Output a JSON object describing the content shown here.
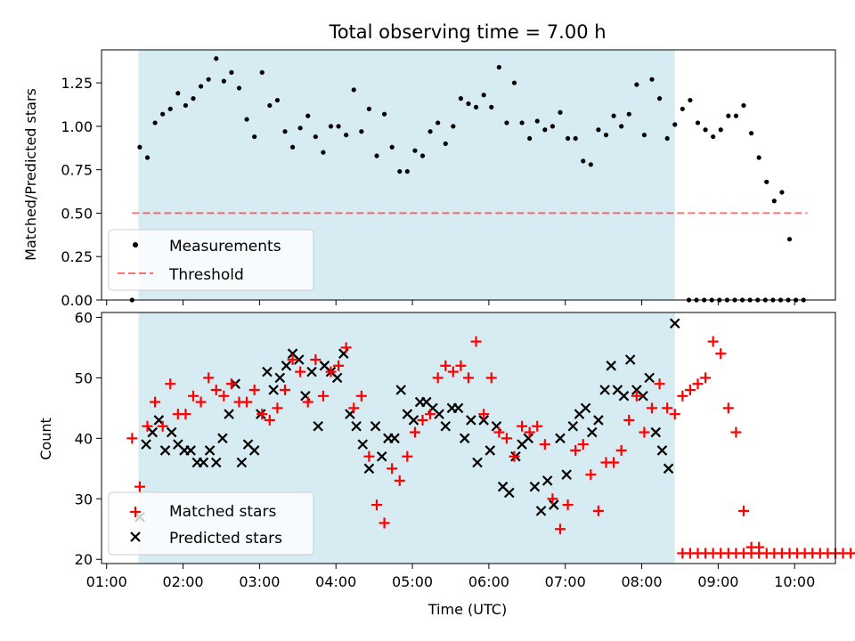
{
  "colors": {
    "shade": "#add8e6",
    "threshold": "#ff0000",
    "matched": "#ff0000",
    "predicted": "#000000",
    "measurement": "#000000"
  },
  "chart_data": [
    {
      "type": "scatter",
      "title": "Total observing time = 7.00 h",
      "ylabel": "Matched/Predicted stars",
      "xlabel": "",
      "xlim": [
        "00:56",
        "10:32"
      ],
      "ylim": [
        0,
        1.44
      ],
      "yticks": [
        "0.00",
        "0.25",
        "0.50",
        "0.75",
        "1.00",
        "1.25"
      ],
      "shaded_span": [
        "01:25",
        "08:26"
      ],
      "legend": {
        "position": "lower-left",
        "entries": [
          "Measurements",
          "Threshold"
        ]
      },
      "threshold": {
        "name": "Threshold",
        "y": 0.5,
        "x_range": [
          "01:20",
          "10:10"
        ]
      },
      "series": [
        {
          "name": "Measurements",
          "marker": "dot",
          "points": [
            [
              "01:20",
              0.0
            ],
            [
              "01:26",
              0.88
            ],
            [
              "01:32",
              0.82
            ],
            [
              "01:38",
              1.02
            ],
            [
              "01:44",
              1.07
            ],
            [
              "01:50",
              1.1
            ],
            [
              "01:56",
              1.19
            ],
            [
              "02:02",
              1.12
            ],
            [
              "02:08",
              1.16
            ],
            [
              "02:14",
              1.23
            ],
            [
              "02:20",
              1.27
            ],
            [
              "02:26",
              1.39
            ],
            [
              "02:32",
              1.26
            ],
            [
              "02:38",
              1.31
            ],
            [
              "02:44",
              1.22
            ],
            [
              "02:50",
              1.04
            ],
            [
              "02:56",
              0.94
            ],
            [
              "03:02",
              1.31
            ],
            [
              "03:08",
              1.12
            ],
            [
              "03:14",
              1.15
            ],
            [
              "03:20",
              0.97
            ],
            [
              "03:26",
              0.88
            ],
            [
              "03:32",
              0.99
            ],
            [
              "03:38",
              1.06
            ],
            [
              "03:44",
              0.94
            ],
            [
              "03:50",
              0.85
            ],
            [
              "03:56",
              1.0
            ],
            [
              "04:02",
              1.0
            ],
            [
              "04:08",
              0.95
            ],
            [
              "04:14",
              1.21
            ],
            [
              "04:20",
              0.97
            ],
            [
              "04:26",
              1.1
            ],
            [
              "04:32",
              0.83
            ],
            [
              "04:38",
              1.07
            ],
            [
              "04:44",
              0.88
            ],
            [
              "04:50",
              0.74
            ],
            [
              "04:56",
              0.74
            ],
            [
              "05:02",
              0.86
            ],
            [
              "05:08",
              0.83
            ],
            [
              "05:14",
              0.97
            ],
            [
              "05:20",
              1.02
            ],
            [
              "05:26",
              0.9
            ],
            [
              "05:32",
              1.0
            ],
            [
              "05:38",
              1.16
            ],
            [
              "05:44",
              1.13
            ],
            [
              "05:50",
              1.11
            ],
            [
              "05:56",
              1.18
            ],
            [
              "06:02",
              1.11
            ],
            [
              "06:08",
              1.34
            ],
            [
              "06:14",
              1.02
            ],
            [
              "06:20",
              1.25
            ],
            [
              "06:26",
              1.02
            ],
            [
              "06:32",
              0.93
            ],
            [
              "06:38",
              1.03
            ],
            [
              "06:44",
              0.98
            ],
            [
              "06:50",
              1.0
            ],
            [
              "06:56",
              1.08
            ],
            [
              "07:02",
              0.93
            ],
            [
              "07:08",
              0.93
            ],
            [
              "07:14",
              0.8
            ],
            [
              "07:20",
              0.78
            ],
            [
              "07:26",
              0.98
            ],
            [
              "07:32",
              0.95
            ],
            [
              "07:38",
              1.06
            ],
            [
              "07:44",
              1.0
            ],
            [
              "07:50",
              1.07
            ],
            [
              "07:56",
              1.24
            ],
            [
              "08:02",
              0.95
            ],
            [
              "08:08",
              1.27
            ],
            [
              "08:14",
              1.16
            ],
            [
              "08:20",
              0.93
            ],
            [
              "08:26",
              1.01
            ],
            [
              "08:32",
              1.1
            ],
            [
              "08:38",
              1.15
            ],
            [
              "08:44",
              1.02
            ],
            [
              "08:50",
              0.98
            ],
            [
              "08:56",
              0.94
            ],
            [
              "09:02",
              0.98
            ],
            [
              "09:08",
              1.06
            ],
            [
              "09:14",
              1.06
            ],
            [
              "09:20",
              1.12
            ],
            [
              "09:26",
              0.96
            ],
            [
              "09:32",
              0.82
            ],
            [
              "09:38",
              0.68
            ],
            [
              "09:44",
              0.57
            ],
            [
              "09:50",
              0.62
            ],
            [
              "09:56",
              0.35
            ],
            [
              "08:37",
              0.0
            ],
            [
              "08:43",
              0.0
            ],
            [
              "08:49",
              0.0
            ],
            [
              "08:55",
              0.0
            ],
            [
              "09:01",
              0.0
            ],
            [
              "09:07",
              0.0
            ],
            [
              "09:13",
              0.0
            ],
            [
              "09:19",
              0.0
            ],
            [
              "09:25",
              0.0
            ],
            [
              "09:31",
              0.0
            ],
            [
              "09:37",
              0.0
            ],
            [
              "09:43",
              0.0
            ],
            [
              "09:49",
              0.0
            ],
            [
              "09:55",
              0.0
            ],
            [
              "10:01",
              0.0
            ],
            [
              "10:07",
              0.0
            ]
          ]
        }
      ]
    },
    {
      "type": "scatter",
      "title": "",
      "ylabel": "Count",
      "xlabel": "Time (UTC)",
      "xlim": [
        "00:56",
        "10:32"
      ],
      "ylim": [
        19.3,
        60.8
      ],
      "yticks": [
        "20",
        "30",
        "40",
        "50",
        "60"
      ],
      "xticks": [
        "01:00",
        "02:00",
        "03:00",
        "04:00",
        "05:00",
        "06:00",
        "07:00",
        "08:00",
        "09:00",
        "10:00"
      ],
      "shaded_span": [
        "01:25",
        "08:26"
      ],
      "legend": {
        "position": "lower-left",
        "entries": [
          "Matched stars",
          "Predicted stars"
        ]
      },
      "series": [
        {
          "name": "Matched stars",
          "marker": "plus",
          "y": [
            40,
            32,
            42,
            46,
            42,
            49,
            44,
            44,
            47,
            46,
            50,
            48,
            47,
            49,
            46,
            46,
            48,
            44,
            43,
            45,
            48,
            53,
            51,
            46,
            53,
            47,
            51,
            52,
            55,
            45,
            47,
            37,
            29,
            26,
            35,
            33,
            37,
            41,
            43,
            44,
            50,
            52,
            51,
            52,
            50,
            56,
            44,
            50,
            41,
            40,
            37,
            42,
            41,
            42,
            39,
            30,
            25,
            29,
            38,
            39,
            34,
            28,
            36,
            36,
            38,
            43,
            47,
            41,
            45,
            49,
            45,
            44,
            47,
            48,
            49,
            50,
            56,
            54,
            45,
            41,
            28,
            22,
            22
          ],
          "x_start": "01:20",
          "x_step_min": 6,
          "tail": {
            "x_start": "08:32",
            "x_step_min": 6,
            "count": 27,
            "y": 21
          }
        },
        {
          "name": "Predicted stars",
          "marker": "x",
          "y": [
            27,
            39,
            41,
            43,
            38,
            41,
            39,
            38,
            38,
            36,
            36,
            38,
            36,
            40,
            44,
            49,
            36,
            39,
            38,
            44,
            51,
            48,
            50,
            52,
            54,
            53,
            47,
            51,
            42,
            52,
            51,
            50,
            54,
            44,
            42,
            39,
            35,
            42,
            37,
            40,
            40,
            48,
            44,
            43,
            46,
            46,
            45,
            44,
            42,
            45,
            45,
            40,
            43,
            36,
            43,
            38,
            42,
            32,
            31,
            37,
            39,
            40,
            32,
            28,
            33,
            29,
            40,
            34,
            42,
            44,
            45,
            41,
            43,
            48,
            52,
            48,
            47,
            53,
            48,
            47,
            50,
            41,
            38,
            35,
            59
          ],
          "x_start": "01:26",
          "x_step_min": 5
        }
      ]
    }
  ]
}
